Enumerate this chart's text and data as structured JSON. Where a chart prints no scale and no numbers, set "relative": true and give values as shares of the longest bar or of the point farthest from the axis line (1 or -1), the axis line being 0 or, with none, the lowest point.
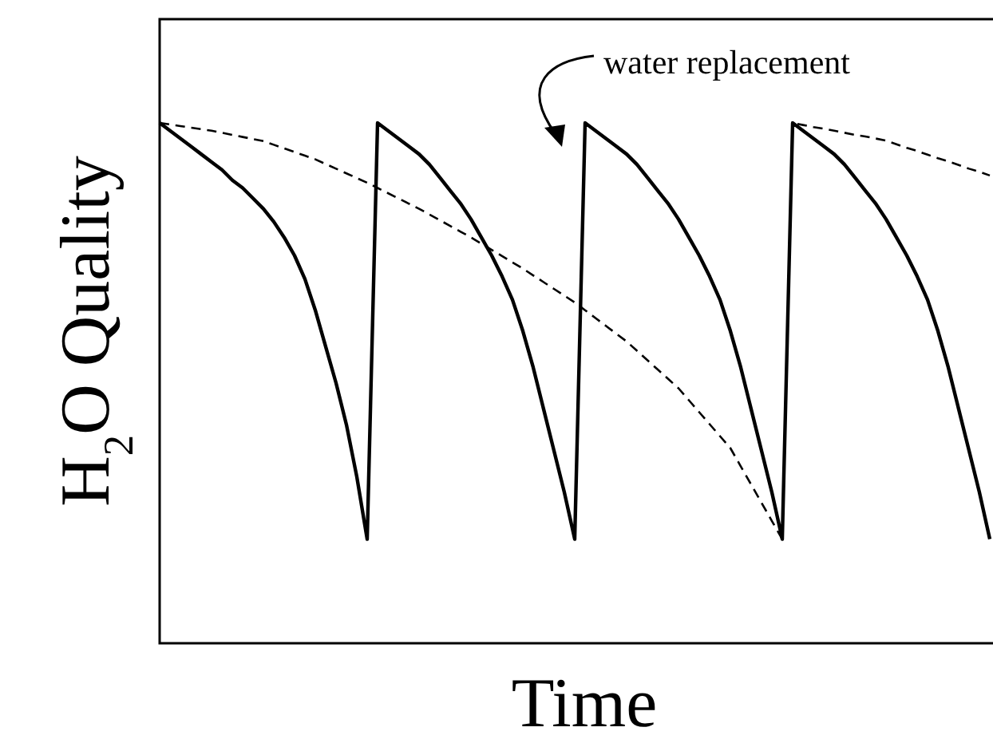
{
  "chart_data": {
    "type": "line",
    "relative": true,
    "xlabel": "Time",
    "ylabel": "H$_{2}$O Quality",
    "tick_labels": false,
    "annotations": [
      "water replacement"
    ],
    "categories": [
      null,
      null,
      null,
      null,
      null,
      null,
      null,
      null,
      null,
      null,
      null,
      null,
      null,
      null,
      null,
      null,
      null,
      null,
      null,
      null,
      null,
      null,
      null,
      null,
      null,
      null,
      null,
      null,
      null,
      null,
      null,
      null,
      null,
      null,
      null,
      null,
      null,
      null,
      null,
      null,
      null,
      null,
      null,
      null,
      null,
      null,
      null,
      null,
      null,
      null,
      null,
      null,
      null,
      null,
      null,
      null,
      null,
      null,
      null,
      null,
      null,
      null,
      null,
      null,
      null,
      null,
      null,
      null,
      null,
      null,
      null,
      null,
      null,
      null,
      null,
      null,
      null,
      null,
      null,
      null,
      null
    ],
    "series": [
      {
        "color": "#000000",
        "line_style": "solid",
        "values": [
          1,
          0.985,
          0.97,
          0.955,
          0.94,
          0.925,
          0.91,
          0.89,
          0.875,
          0.855,
          0.835,
          0.81,
          0.78,
          0.745,
          0.7,
          0.64,
          0.57,
          0.5,
          0.42,
          0.32,
          0.2,
          1,
          0.985,
          0.97,
          0.955,
          0.94,
          0.92,
          0.895,
          0.87,
          0.845,
          0.815,
          0.78,
          0.745,
          0.705,
          0.66,
          0.6,
          0.53,
          0.45,
          0.37,
          0.29,
          0.2,
          1,
          0.985,
          0.97,
          0.955,
          0.94,
          0.92,
          0.895,
          0.87,
          0.845,
          0.815,
          0.78,
          0.745,
          0.705,
          0.66,
          0.6,
          0.53,
          0.45,
          0.37,
          0.29,
          0.2,
          1,
          0.985,
          0.97,
          0.955,
          0.94,
          0.92,
          0.895,
          0.87,
          0.845,
          0.815,
          0.78,
          0.745,
          0.705,
          0.66,
          0.6,
          0.53,
          0.45,
          0.37,
          0.29,
          0.2
        ]
      },
      {
        "color": "#000000",
        "line_style": "dashed",
        "values": [
          1,
          0.997,
          0.994,
          0.991,
          0.988,
          0.985,
          0.981,
          0.977,
          0.973,
          0.969,
          0.965,
          0.958,
          0.951,
          0.944,
          0.937,
          0.93,
          0.921,
          0.912,
          0.903,
          0.894,
          0.885,
          0.875,
          0.865,
          0.855,
          0.845,
          0.835,
          0.824,
          0.813,
          0.802,
          0.791,
          0.78,
          0.768,
          0.756,
          0.744,
          0.732,
          0.72,
          0.707,
          0.694,
          0.681,
          0.668,
          0.655,
          0.64,
          0.625,
          0.61,
          0.595,
          0.58,
          0.562,
          0.544,
          0.526,
          0.508,
          0.49,
          0.467,
          0.444,
          0.421,
          0.398,
          0.375,
          0.34,
          0.305,
          0.27,
          0.235,
          0.2,
          1,
          0.996,
          0.992,
          0.989,
          0.985,
          0.981,
          0.977,
          0.974,
          0.97,
          0.966,
          0.959,
          0.952,
          0.946,
          0.939,
          0.932,
          0.926,
          0.919,
          0.912,
          0.906,
          0.899
        ]
      }
    ]
  }
}
